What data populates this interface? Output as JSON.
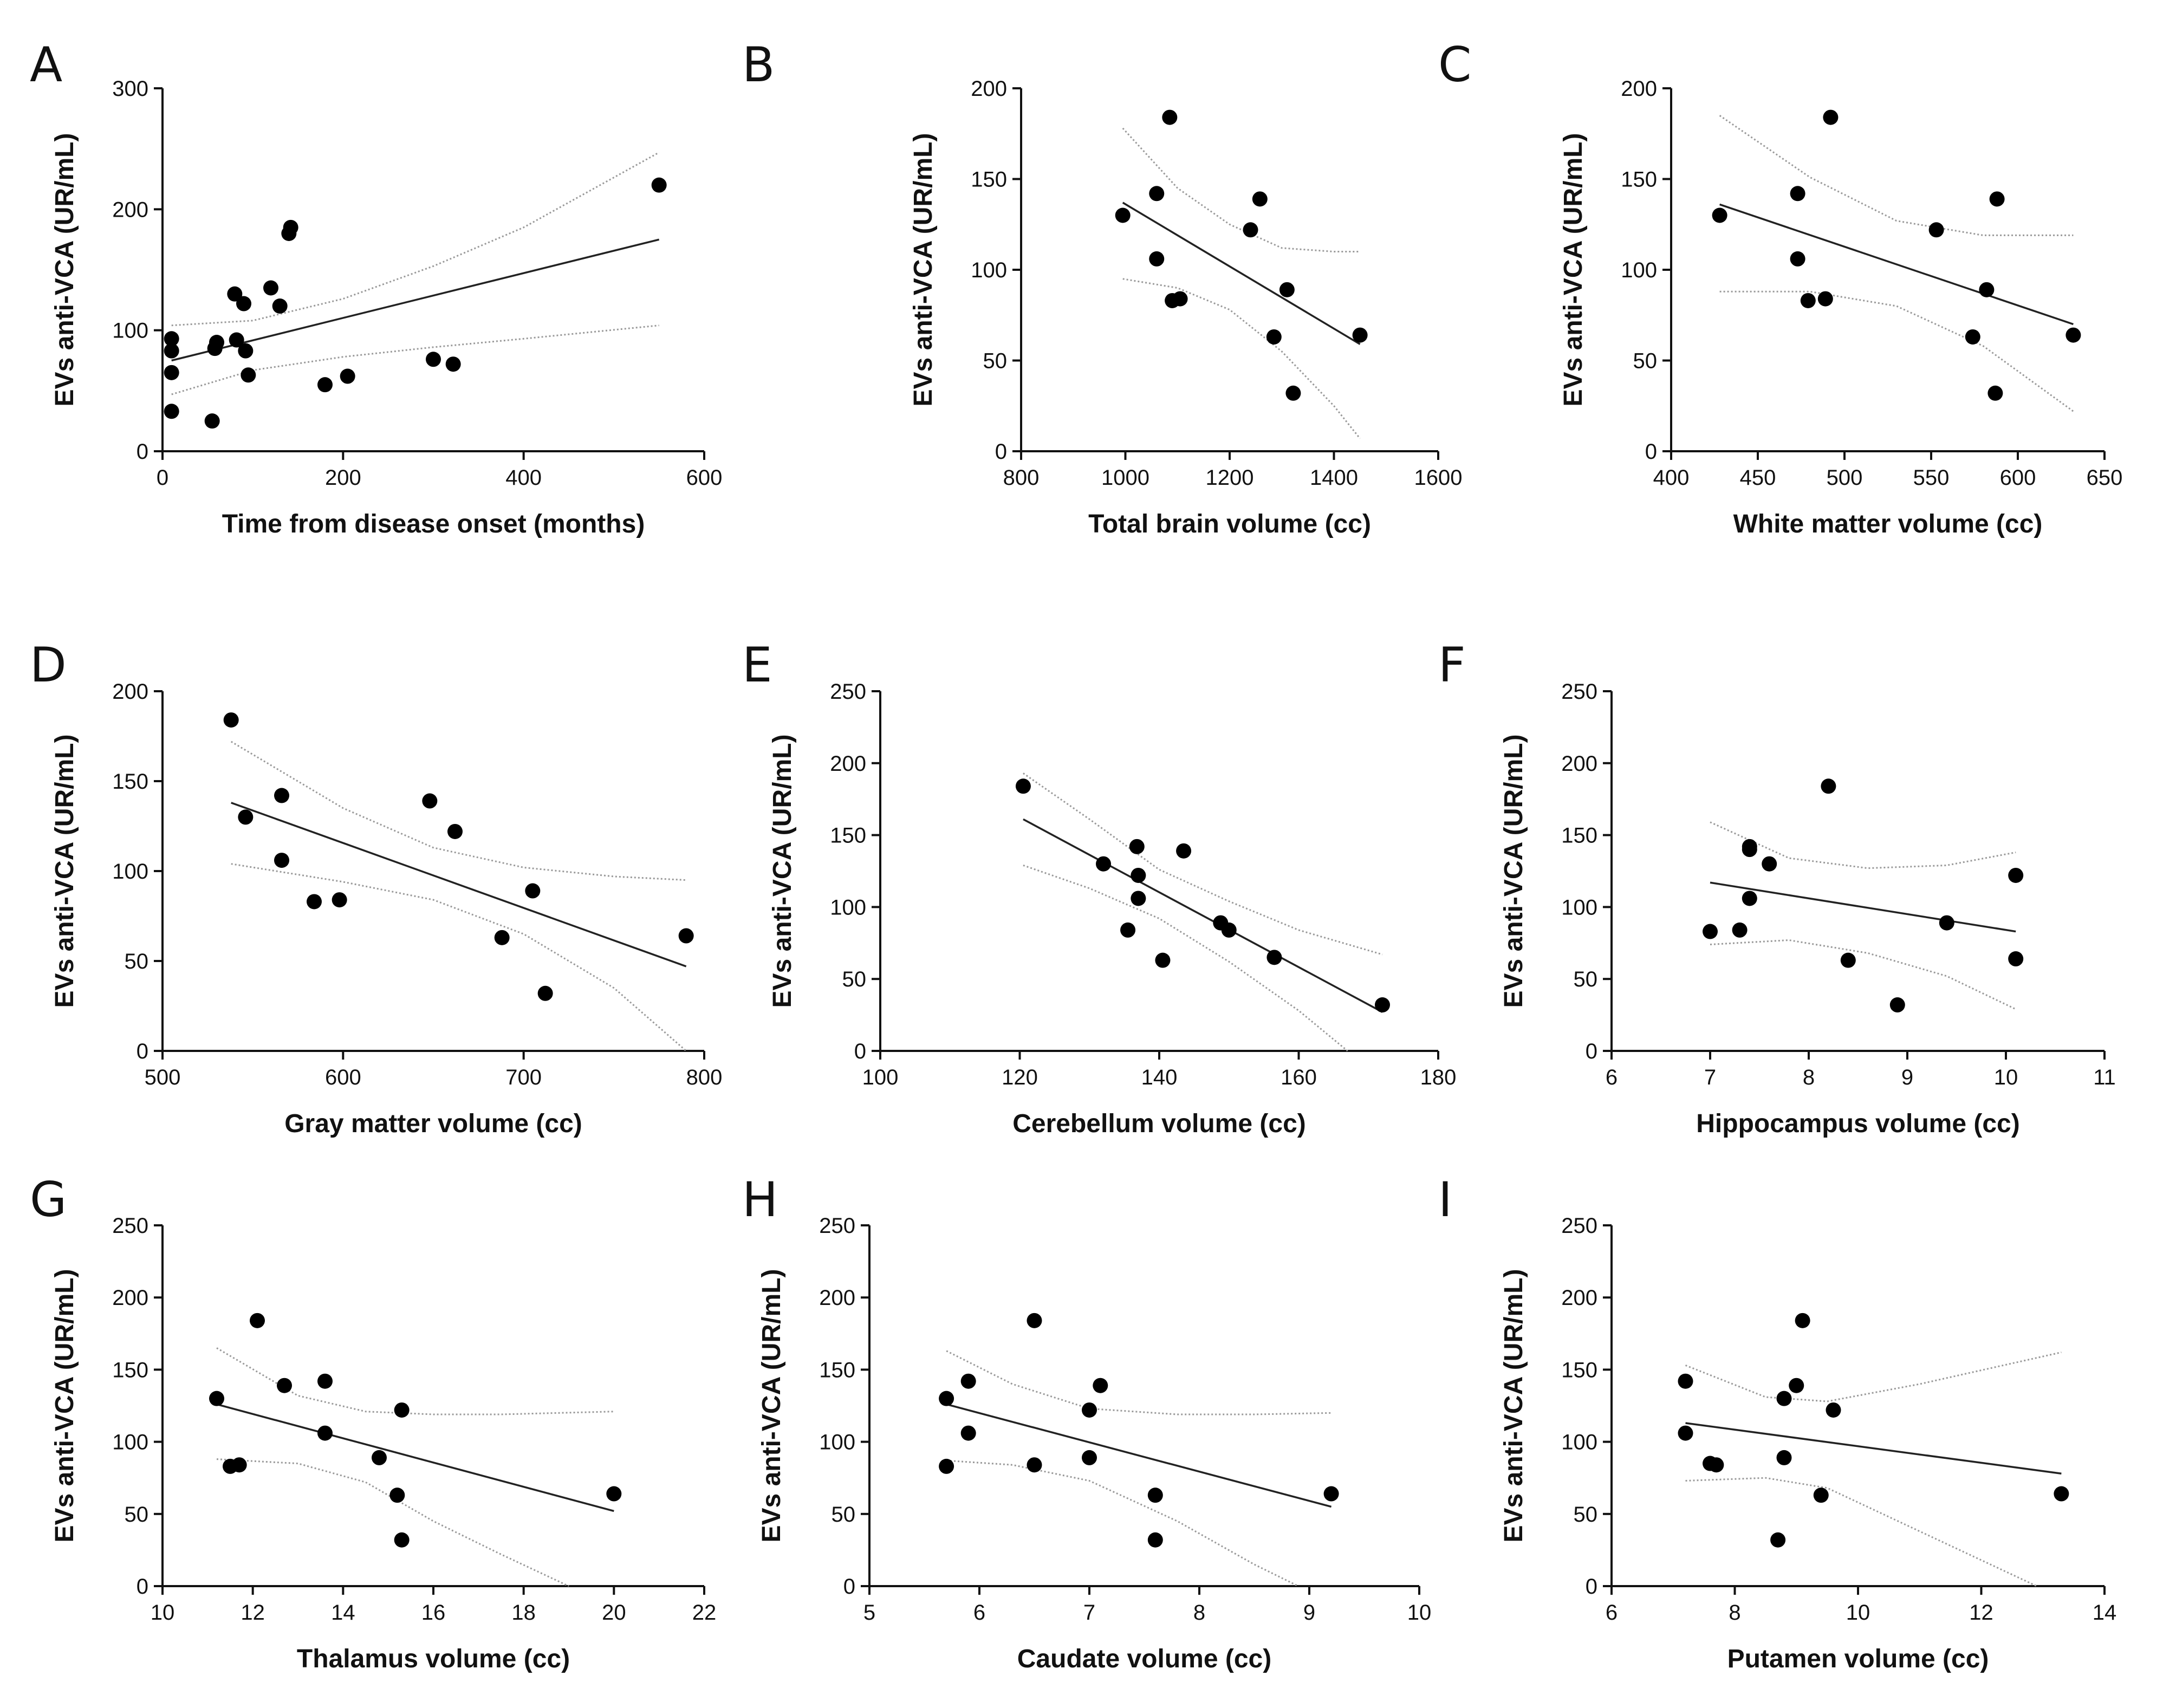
{
  "figure": {
    "charts": [
      {
        "letter": "A",
        "xlabel": "Time from disease onset (months)"
      },
      {
        "letter": "B",
        "xlabel": "Total brain volume (cc)"
      },
      {
        "letter": "C",
        "xlabel": "White matter volume (cc)"
      },
      {
        "letter": "D",
        "xlabel": "Gray matter volume (cc)"
      },
      {
        "letter": "E",
        "xlabel": "Cerebellum volume (cc)"
      },
      {
        "letter": "F",
        "xlabel": "Hippocampus volume (cc)"
      },
      {
        "letter": "G",
        "xlabel": "Thalamus volume (cc)"
      },
      {
        "letter": "H",
        "xlabel": "Caudate volume (cc)"
      },
      {
        "letter": "I",
        "xlabel": "Putamen volume (cc)"
      }
    ]
  },
  "chart_data": [
    {
      "panel": "A",
      "type": "scatter",
      "xlabel": "Time from disease onset (months)",
      "ylabel": "EVs anti-VCA (UR/mL)",
      "xlim": [
        0,
        600
      ],
      "ylim": [
        0,
        300
      ],
      "xticks": [
        0,
        200,
        400,
        600
      ],
      "yticks": [
        0,
        100,
        200,
        300
      ],
      "points": [
        [
          10,
          33
        ],
        [
          10,
          65
        ],
        [
          10,
          83
        ],
        [
          10,
          93
        ],
        [
          55,
          25
        ],
        [
          58,
          85
        ],
        [
          60,
          90
        ],
        [
          80,
          130
        ],
        [
          82,
          92
        ],
        [
          90,
          122
        ],
        [
          92,
          83
        ],
        [
          95,
          63
        ],
        [
          120,
          135
        ],
        [
          130,
          120
        ],
        [
          140,
          180
        ],
        [
          142,
          185
        ],
        [
          180,
          55
        ],
        [
          205,
          62
        ],
        [
          300,
          76
        ],
        [
          322,
          72
        ],
        [
          550,
          220
        ]
      ],
      "fit": {
        "x": [
          10,
          550
        ],
        "y": [
          75,
          175
        ]
      },
      "ci_lower": {
        "x": [
          10,
          100,
          200,
          300,
          400,
          550
        ],
        "y": [
          47,
          67,
          78,
          86,
          93,
          104
        ]
      },
      "ci_upper": {
        "x": [
          10,
          100,
          200,
          300,
          400,
          550
        ],
        "y": [
          104,
          108,
          126,
          153,
          185,
          247
        ]
      }
    },
    {
      "panel": "B",
      "type": "scatter",
      "xlabel": "Total brain volume (cc)",
      "ylabel": "EVs anti-VCA (UR/mL)",
      "xlim": [
        800,
        1600
      ],
      "ylim": [
        0,
        200
      ],
      "xticks": [
        800,
        1000,
        1200,
        1400,
        1600
      ],
      "yticks": [
        0,
        50,
        100,
        150,
        200
      ],
      "points": [
        [
          995,
          130
        ],
        [
          1060,
          142
        ],
        [
          1060,
          106
        ],
        [
          1085,
          184
        ],
        [
          1090,
          83
        ],
        [
          1105,
          84
        ],
        [
          1240,
          122
        ],
        [
          1258,
          139
        ],
        [
          1285,
          63
        ],
        [
          1310,
          89
        ],
        [
          1322,
          32
        ],
        [
          1450,
          64
        ]
      ],
      "fit": {
        "x": [
          995,
          1450
        ],
        "y": [
          137,
          59
        ]
      },
      "ci_lower": {
        "x": [
          995,
          1100,
          1200,
          1300,
          1400,
          1450
        ],
        "y": [
          95,
          90,
          78,
          55,
          25,
          7
        ]
      },
      "ci_upper": {
        "x": [
          995,
          1100,
          1200,
          1300,
          1400,
          1450
        ],
        "y": [
          178,
          145,
          125,
          112,
          110,
          110
        ]
      }
    },
    {
      "panel": "C",
      "type": "scatter",
      "xlabel": "White matter volume (cc)",
      "ylabel": "EVs anti-VCA (UR/mL)",
      "xlim": [
        400,
        650
      ],
      "ylim": [
        0,
        200
      ],
      "xticks": [
        400,
        450,
        500,
        550,
        600,
        650
      ],
      "yticks": [
        0,
        50,
        100,
        150,
        200
      ],
      "points": [
        [
          428,
          130
        ],
        [
          473,
          142
        ],
        [
          473,
          106
        ],
        [
          479,
          83
        ],
        [
          489,
          84
        ],
        [
          492,
          184
        ],
        [
          553,
          122
        ],
        [
          574,
          63
        ],
        [
          582,
          89
        ],
        [
          587,
          32
        ],
        [
          588,
          139
        ],
        [
          632,
          64
        ]
      ],
      "fit": {
        "x": [
          428,
          632
        ],
        "y": [
          136,
          70
        ]
      },
      "ci_lower": {
        "x": [
          428,
          480,
          530,
          580,
          632
        ],
        "y": [
          88,
          88,
          80,
          58,
          22
        ]
      },
      "ci_upper": {
        "x": [
          428,
          480,
          530,
          580,
          632
        ],
        "y": [
          185,
          151,
          127,
          119,
          119
        ]
      }
    },
    {
      "panel": "D",
      "type": "scatter",
      "xlabel": "Gray matter volume (cc)",
      "ylabel": "EVs anti-VCA (UR/mL)",
      "xlim": [
        500,
        800
      ],
      "ylim": [
        0,
        200
      ],
      "xticks": [
        500,
        600,
        700,
        800
      ],
      "yticks": [
        0,
        50,
        100,
        150,
        200
      ],
      "points": [
        [
          538,
          184
        ],
        [
          546,
          130
        ],
        [
          566,
          142
        ],
        [
          566,
          106
        ],
        [
          584,
          83
        ],
        [
          598,
          84
        ],
        [
          648,
          139
        ],
        [
          662,
          122
        ],
        [
          688,
          63
        ],
        [
          705,
          89
        ],
        [
          712,
          32
        ],
        [
          790,
          64
        ]
      ],
      "fit": {
        "x": [
          538,
          790
        ],
        "y": [
          138,
          47
        ]
      },
      "ci_lower": {
        "x": [
          538,
          600,
          650,
          700,
          750,
          790
        ],
        "y": [
          104,
          94,
          84,
          65,
          35,
          -4
        ]
      },
      "ci_upper": {
        "x": [
          538,
          600,
          650,
          700,
          750,
          790
        ],
        "y": [
          172,
          135,
          113,
          102,
          97,
          95
        ]
      }
    },
    {
      "panel": "E",
      "type": "scatter",
      "xlabel": "Cerebellum volume (cc)",
      "ylabel": "EVs anti-VCA (UR/mL)",
      "xlim": [
        100,
        180
      ],
      "ylim": [
        0,
        250
      ],
      "xticks": [
        100,
        120,
        140,
        160,
        180
      ],
      "yticks": [
        0,
        50,
        100,
        150,
        200,
        250
      ],
      "points": [
        [
          120.5,
          184
        ],
        [
          132,
          130
        ],
        [
          135.5,
          84
        ],
        [
          136.8,
          142
        ],
        [
          137,
          122
        ],
        [
          137,
          106
        ],
        [
          140.5,
          63
        ],
        [
          143.5,
          139
        ],
        [
          148.8,
          89
        ],
        [
          150,
          84
        ],
        [
          156.5,
          65
        ],
        [
          172,
          32
        ]
      ],
      "fit": {
        "x": [
          120.5,
          172
        ],
        "y": [
          161,
          27
        ]
      },
      "ci_lower": {
        "x": [
          120.5,
          130,
          140,
          150,
          160,
          167
        ],
        "y": [
          129,
          113,
          92,
          62,
          28,
          0
        ]
      },
      "ci_upper": {
        "x": [
          120.5,
          130,
          140,
          150,
          160,
          172
        ],
        "y": [
          193,
          161,
          126,
          104,
          84,
          67
        ]
      }
    },
    {
      "panel": "F",
      "type": "scatter",
      "xlabel": "Hippocampus volume (cc)",
      "ylabel": "EVs anti-VCA (UR/mL)",
      "xlim": [
        6,
        11
      ],
      "ylim": [
        0,
        250
      ],
      "xticks": [
        6,
        7,
        8,
        9,
        10,
        11
      ],
      "yticks": [
        0,
        50,
        100,
        150,
        200,
        250
      ],
      "points": [
        [
          7.0,
          83
        ],
        [
          7.3,
          84
        ],
        [
          7.4,
          140
        ],
        [
          7.4,
          142
        ],
        [
          7.4,
          106
        ],
        [
          7.6,
          130
        ],
        [
          8.2,
          184
        ],
        [
          8.4,
          63
        ],
        [
          8.9,
          32
        ],
        [
          9.4,
          89
        ],
        [
          10.1,
          122
        ],
        [
          10.1,
          64
        ]
      ],
      "fit": {
        "x": [
          7.0,
          10.1
        ],
        "y": [
          117,
          83
        ]
      },
      "ci_lower": {
        "x": [
          7.0,
          7.8,
          8.6,
          9.4,
          10.1
        ],
        "y": [
          74,
          77,
          68,
          52,
          29
        ]
      },
      "ci_upper": {
        "x": [
          7.0,
          7.8,
          8.6,
          9.4,
          10.1
        ],
        "y": [
          159,
          134,
          127,
          129,
          138
        ]
      }
    },
    {
      "panel": "G",
      "type": "scatter",
      "xlabel": "Thalamus volume (cc)",
      "ylabel": "EVs anti-VCA (UR/mL)",
      "xlim": [
        10,
        22
      ],
      "ylim": [
        0,
        250
      ],
      "xticks": [
        10,
        12,
        14,
        16,
        18,
        20,
        22
      ],
      "yticks": [
        0,
        50,
        100,
        150,
        200,
        250
      ],
      "points": [
        [
          11.2,
          130
        ],
        [
          11.5,
          83
        ],
        [
          11.7,
          84
        ],
        [
          12.1,
          184
        ],
        [
          12.7,
          139
        ],
        [
          13.6,
          142
        ],
        [
          13.6,
          106
        ],
        [
          14.8,
          89
        ],
        [
          15.2,
          63
        ],
        [
          15.3,
          122
        ],
        [
          15.3,
          32
        ],
        [
          20,
          64
        ]
      ],
      "fit": {
        "x": [
          11.2,
          20
        ],
        "y": [
          126,
          52
        ]
      },
      "ci_lower": {
        "x": [
          11.2,
          13,
          14.5,
          16,
          17.5,
          19
        ],
        "y": [
          88,
          85,
          72,
          45,
          22,
          0
        ]
      },
      "ci_upper": {
        "x": [
          11.2,
          13,
          14.5,
          16,
          17.5,
          20
        ],
        "y": [
          165,
          132,
          121,
          119,
          119,
          121
        ]
      }
    },
    {
      "panel": "H",
      "type": "scatter",
      "xlabel": "Caudate volume (cc)",
      "ylabel": "EVs anti-VCA (UR/mL)",
      "xlim": [
        5,
        10
      ],
      "ylim": [
        0,
        250
      ],
      "xticks": [
        5,
        6,
        7,
        8,
        9,
        10
      ],
      "yticks": [
        0,
        50,
        100,
        150,
        200,
        250
      ],
      "points": [
        [
          5.7,
          130
        ],
        [
          5.7,
          83
        ],
        [
          5.9,
          142
        ],
        [
          5.9,
          106
        ],
        [
          6.5,
          184
        ],
        [
          6.5,
          84
        ],
        [
          7.0,
          122
        ],
        [
          7.0,
          89
        ],
        [
          7.1,
          139
        ],
        [
          7.6,
          63
        ],
        [
          7.6,
          32
        ],
        [
          9.2,
          64
        ]
      ],
      "fit": {
        "x": [
          5.7,
          9.2
        ],
        "y": [
          126,
          55
        ]
      },
      "ci_lower": {
        "x": [
          5.7,
          6.3,
          7.0,
          7.8,
          8.5,
          8.9
        ],
        "y": [
          87,
          84,
          73,
          45,
          15,
          0
        ]
      },
      "ci_upper": {
        "x": [
          5.7,
          6.3,
          7.0,
          7.8,
          8.5,
          9.2
        ],
        "y": [
          163,
          140,
          123,
          119,
          119,
          120
        ]
      }
    },
    {
      "panel": "I",
      "type": "scatter",
      "xlabel": "Putamen volume (cc)",
      "ylabel": "EVs anti-VCA (UR/mL)",
      "xlim": [
        6,
        14
      ],
      "ylim": [
        0,
        250
      ],
      "xticks": [
        6,
        8,
        10,
        12,
        14
      ],
      "yticks": [
        0,
        50,
        100,
        150,
        200,
        250
      ],
      "points": [
        [
          7.2,
          142
        ],
        [
          7.2,
          106
        ],
        [
          7.6,
          85
        ],
        [
          7.7,
          84
        ],
        [
          8.7,
          32
        ],
        [
          8.8,
          130
        ],
        [
          8.8,
          89
        ],
        [
          9.0,
          139
        ],
        [
          9.1,
          184
        ],
        [
          9.4,
          63
        ],
        [
          9.6,
          122
        ],
        [
          13.3,
          64
        ]
      ],
      "fit": {
        "x": [
          7.2,
          13.3
        ],
        "y": [
          113,
          78
        ]
      },
      "ci_lower": {
        "x": [
          7.2,
          8.5,
          9.5,
          11,
          12.9
        ],
        "y": [
          73,
          75,
          68,
          38,
          0
        ]
      },
      "ci_upper": {
        "x": [
          7.2,
          8.5,
          9.5,
          11,
          13.3
        ],
        "y": [
          153,
          131,
          128,
          140,
          162
        ]
      }
    }
  ]
}
